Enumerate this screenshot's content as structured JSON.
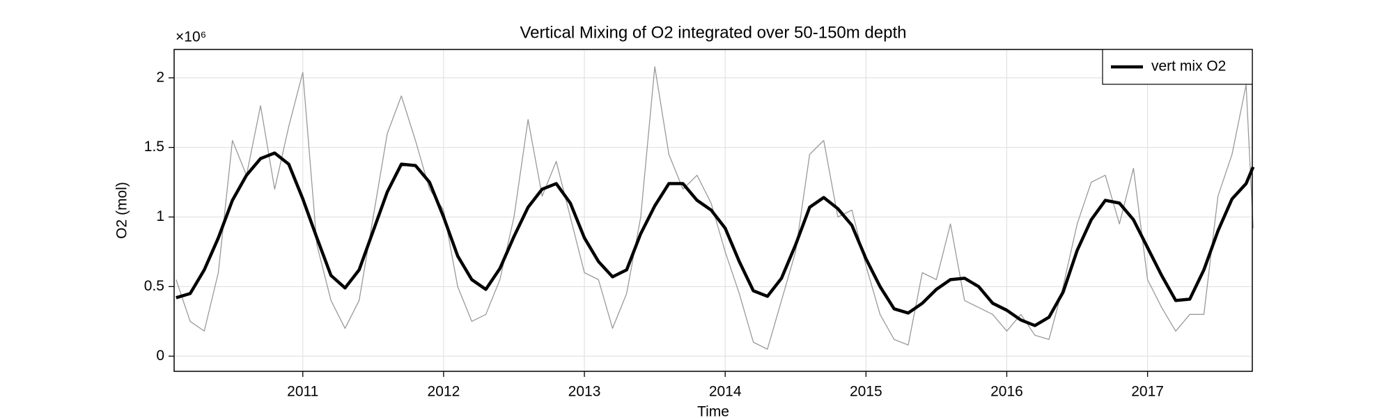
{
  "chart_data": {
    "type": "line",
    "title": "Vertical Mixing of O2 integrated over 50-150m depth",
    "xlabel": "Time",
    "ylabel": "O2 (mol)",
    "y_multiplier": "×10⁶",
    "x": [
      2010.1,
      2010.2,
      2010.3,
      2010.4,
      2010.5,
      2010.6,
      2010.7,
      2010.8,
      2010.9,
      2011.0,
      2011.1,
      2011.2,
      2011.3,
      2011.4,
      2011.5,
      2011.6,
      2011.7,
      2011.8,
      2011.9,
      2012.0,
      2012.1,
      2012.2,
      2012.3,
      2012.4,
      2012.5,
      2012.6,
      2012.7,
      2012.8,
      2012.9,
      2013.0,
      2013.1,
      2013.2,
      2013.3,
      2013.4,
      2013.5,
      2013.6,
      2013.7,
      2013.8,
      2013.9,
      2014.0,
      2014.1,
      2014.2,
      2014.3,
      2014.4,
      2014.5,
      2014.6,
      2014.7,
      2014.8,
      2014.9,
      2015.0,
      2015.1,
      2015.2,
      2015.3,
      2015.4,
      2015.5,
      2015.6,
      2015.7,
      2015.8,
      2015.9,
      2016.0,
      2016.1,
      2016.2,
      2016.3,
      2016.4,
      2016.5,
      2016.6,
      2016.7,
      2016.8,
      2016.9,
      2017.0,
      2017.1,
      2017.2,
      2017.3,
      2017.4,
      2017.5,
      2017.6,
      2017.7,
      2017.75
    ],
    "series": [
      {
        "color": "#999999",
        "values": [
          0.55,
          0.25,
          0.18,
          0.6,
          1.55,
          1.3,
          1.8,
          1.2,
          1.65,
          2.04,
          0.8,
          0.4,
          0.2,
          0.4,
          1.0,
          1.6,
          1.87,
          1.55,
          1.2,
          1.05,
          0.5,
          0.25,
          0.3,
          0.55,
          1.0,
          1.7,
          1.15,
          1.4,
          1.0,
          0.6,
          0.55,
          0.2,
          0.45,
          1.0,
          2.08,
          1.45,
          1.2,
          1.3,
          1.1,
          0.75,
          0.45,
          0.1,
          0.05,
          0.4,
          0.75,
          1.45,
          1.55,
          1.0,
          1.05,
          0.65,
          0.3,
          0.12,
          0.08,
          0.6,
          0.55,
          0.95,
          0.4,
          0.35,
          0.3,
          0.18,
          0.3,
          0.15,
          0.12,
          0.5,
          0.95,
          1.25,
          1.3,
          0.95,
          1.35,
          0.55,
          0.35,
          0.18,
          0.3,
          0.3,
          1.15,
          1.45,
          1.95,
          0.92
        ]
      },
      {
        "name": "vert mix O2",
        "color": "#000000",
        "values": [
          0.42,
          0.45,
          0.62,
          0.85,
          1.12,
          1.3,
          1.42,
          1.46,
          1.38,
          1.13,
          0.85,
          0.58,
          0.49,
          0.62,
          0.9,
          1.18,
          1.38,
          1.37,
          1.25,
          1.0,
          0.72,
          0.55,
          0.48,
          0.63,
          0.86,
          1.07,
          1.2,
          1.24,
          1.1,
          0.85,
          0.68,
          0.57,
          0.62,
          0.88,
          1.08,
          1.24,
          1.24,
          1.12,
          1.05,
          0.92,
          0.68,
          0.47,
          0.43,
          0.56,
          0.8,
          1.07,
          1.14,
          1.06,
          0.94,
          0.7,
          0.5,
          0.34,
          0.31,
          0.38,
          0.48,
          0.55,
          0.56,
          0.5,
          0.38,
          0.33,
          0.26,
          0.22,
          0.28,
          0.46,
          0.76,
          0.98,
          1.12,
          1.1,
          0.98,
          0.78,
          0.58,
          0.4,
          0.41,
          0.62,
          0.9,
          1.13,
          1.24,
          1.36
        ]
      }
    ],
    "xlim": [
      2010.086,
      2017.744
    ],
    "xticks": [
      2011,
      2012,
      2013,
      2014,
      2015,
      2016,
      2017
    ],
    "ylim": [
      -0.109,
      2.204
    ],
    "yticks": [
      0,
      0.5,
      1,
      1.5,
      2
    ],
    "grid": true,
    "legend": "upper right"
  }
}
